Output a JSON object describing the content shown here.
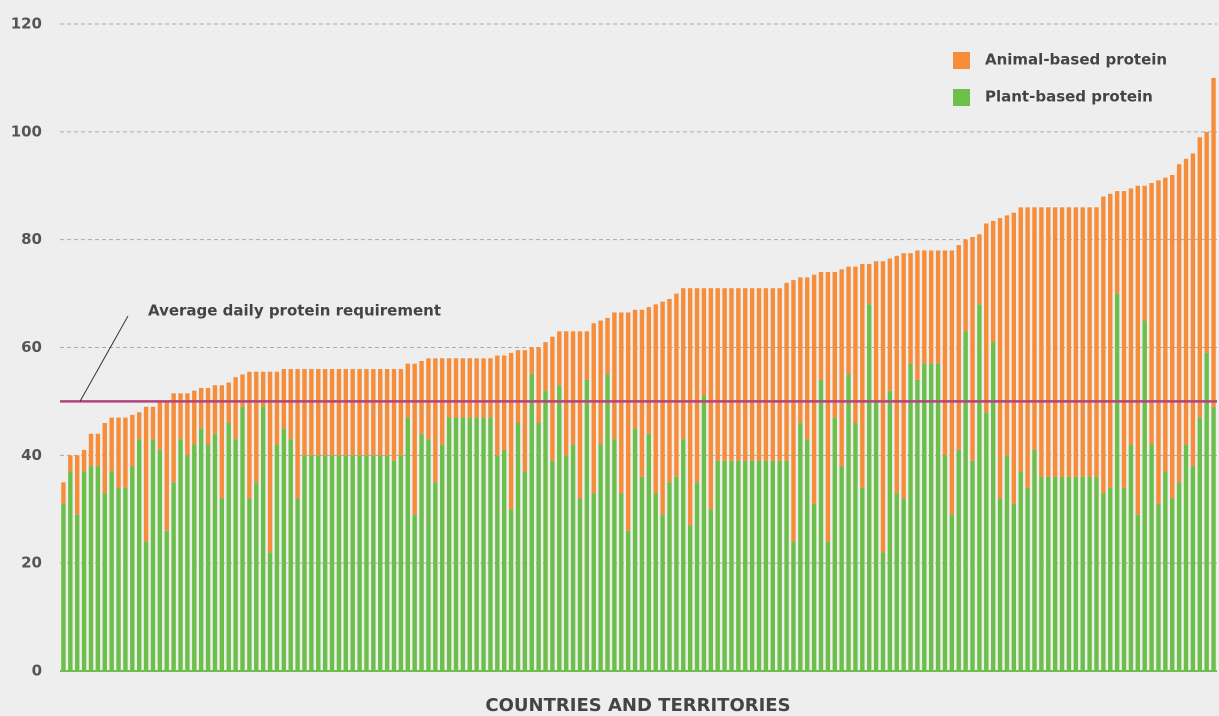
{
  "chart_data": {
    "type": "bar",
    "stacked": true,
    "x_label": "COUNTRIES AND TERRITORIES",
    "categories": [
      null,
      null,
      null,
      null,
      null,
      null,
      null,
      null,
      null,
      null,
      null,
      null,
      null,
      null,
      null,
      null,
      null,
      null,
      null,
      null,
      null,
      null,
      null,
      null,
      null,
      null,
      null,
      null,
      null,
      null,
      null,
      null,
      null,
      null,
      null,
      null,
      null,
      null,
      null,
      null,
      null,
      null,
      null,
      null,
      null,
      null,
      null,
      null,
      null,
      null,
      null,
      null,
      null,
      null,
      null,
      null,
      null,
      null,
      null,
      null,
      null,
      null,
      null,
      null,
      null,
      null,
      null,
      null,
      null,
      null,
      null,
      null,
      null,
      null,
      null,
      null,
      null,
      null,
      null,
      null,
      null,
      null,
      null,
      null,
      null,
      null,
      null,
      null,
      null,
      null,
      null,
      null,
      null,
      null,
      null,
      null,
      null,
      null,
      null,
      null,
      null,
      null,
      null,
      null,
      null,
      null,
      null,
      null,
      null,
      null,
      null,
      null,
      null,
      null,
      null,
      null,
      null,
      null,
      null,
      null,
      null,
      null,
      null,
      null,
      null,
      null,
      null,
      null,
      null,
      null,
      null,
      null,
      null,
      null,
      null,
      null,
      null,
      null,
      null,
      null,
      null,
      null,
      null,
      null,
      null,
      null,
      null,
      null,
      null,
      null,
      null,
      null,
      null,
      null,
      null,
      null,
      null,
      null,
      null,
      null,
      null,
      null,
      null,
      null,
      null,
      null,
      null,
      null
    ],
    "series": [
      {
        "name": "Plant-based protein",
        "color": "#6dbf4b",
        "values": [
          31,
          37,
          29,
          37,
          38,
          38,
          33,
          37,
          34,
          34,
          38,
          43,
          24,
          43,
          41,
          26,
          35,
          43,
          40,
          42,
          45,
          42,
          44,
          32,
          46,
          43,
          49,
          32,
          35,
          49,
          22,
          42,
          45,
          43,
          32,
          40,
          40,
          40,
          40,
          40,
          40,
          40,
          40,
          40,
          40,
          40,
          40,
          40,
          39,
          40,
          47,
          29,
          44,
          43,
          35,
          42,
          47,
          47,
          47,
          47,
          47,
          47,
          47,
          40,
          41,
          30,
          46,
          37,
          55,
          46,
          52,
          39,
          53,
          40,
          42,
          32,
          54,
          33,
          42,
          55,
          43,
          33,
          26,
          45,
          36,
          44,
          33,
          29,
          35,
          36,
          43,
          27,
          35,
          51,
          30,
          39,
          39,
          39,
          39,
          39,
          39,
          39,
          39,
          39,
          39,
          39,
          24,
          46,
          43,
          31,
          54,
          24,
          47,
          38,
          55,
          46,
          34,
          68,
          50,
          22,
          52,
          33,
          32,
          57,
          54,
          57,
          57,
          57,
          40,
          29,
          41,
          63,
          39,
          68,
          48,
          61,
          32,
          40,
          31,
          37,
          34,
          41,
          36,
          36,
          36,
          36,
          36,
          36,
          36,
          36,
          36,
          33,
          34,
          70,
          34,
          42,
          29,
          65,
          42,
          31,
          37,
          32,
          35,
          42,
          38,
          47,
          59,
          49
        ]
      },
      {
        "name": "Animal-based protein",
        "color": "#f68d3a",
        "values": [
          4,
          3,
          11,
          4,
          6,
          6,
          13,
          10,
          13,
          13,
          9.5,
          5,
          25,
          6,
          9,
          24,
          16.5,
          8.5,
          11.5,
          10,
          7.5,
          10.5,
          9,
          21,
          7.5,
          11.5,
          6,
          23.5,
          20.5,
          6.5,
          33.5,
          13.5,
          11,
          13,
          24,
          16,
          16,
          16,
          16,
          16,
          16,
          16,
          16,
          16,
          16,
          16,
          16,
          16,
          17,
          16,
          10,
          28,
          13.5,
          15,
          23,
          16,
          11,
          11,
          11,
          11,
          11,
          11,
          11,
          18.5,
          17.5,
          29,
          13.5,
          22.5,
          5,
          14,
          9,
          23,
          10,
          23,
          21,
          31,
          9,
          31.5,
          23,
          10.5,
          23.5,
          33.5,
          40.5,
          22,
          31,
          23.5,
          35,
          39.5,
          34,
          34,
          28,
          44,
          36,
          20,
          41,
          32,
          32,
          32,
          32,
          32,
          32,
          32,
          32,
          32,
          32,
          33,
          48.5,
          27,
          30,
          42.5,
          20,
          50,
          27,
          36.5,
          20,
          29,
          41.5,
          7.5,
          26,
          54,
          24.5,
          44,
          45.5,
          20.5,
          24,
          21,
          21,
          21,
          38,
          49,
          38,
          17,
          41.5,
          13,
          35,
          22.5,
          52,
          44.5,
          54,
          49,
          52,
          45,
          50,
          50,
          50,
          50,
          50,
          50,
          50,
          50,
          50,
          55,
          54.5,
          19,
          55,
          47.5,
          61,
          25,
          48.5,
          60,
          54.5,
          60,
          59,
          53,
          58,
          52,
          41,
          61
        ]
      }
    ],
    "ylim": [
      0,
      120
    ],
    "yticks": [
      0,
      20,
      40,
      60,
      80,
      100,
      120
    ],
    "grid": true,
    "legend": "upper right",
    "reference_line": {
      "label": "Average daily protein requirement",
      "value": 50,
      "color": "#b2447e"
    }
  }
}
